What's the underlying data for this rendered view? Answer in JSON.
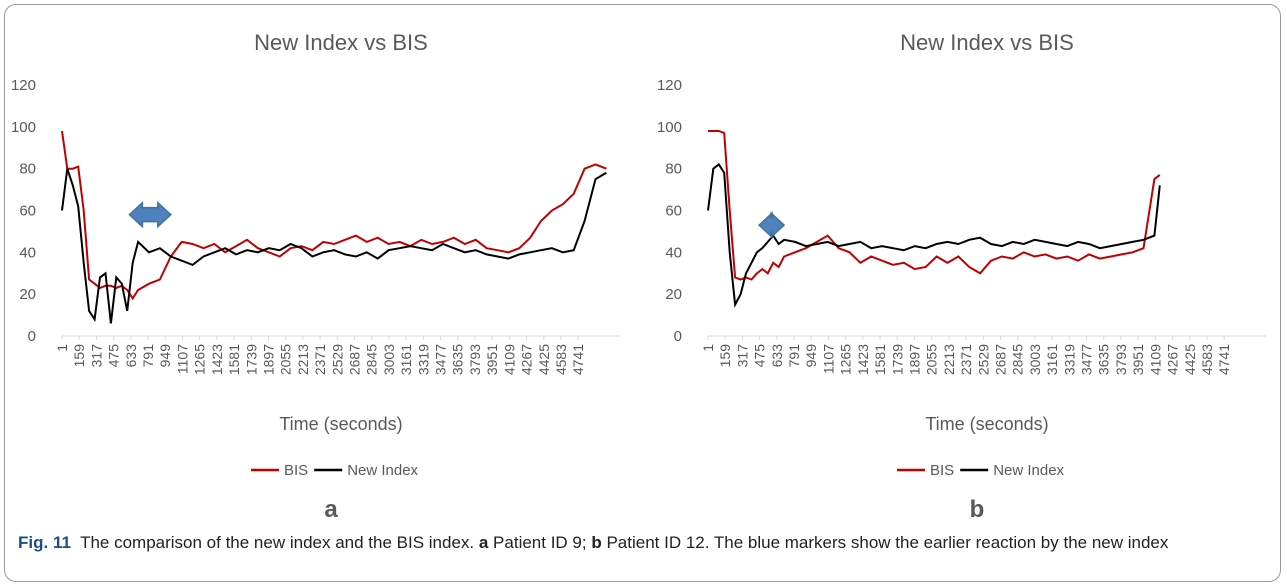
{
  "chart_data": [
    {
      "type": "line",
      "title": "New Index vs BIS",
      "panel": "a",
      "x_label": "Time (seconds)",
      "x": [
        1,
        50,
        100,
        150,
        200,
        250,
        300,
        350,
        400,
        450,
        500,
        550,
        600,
        650,
        700,
        800,
        900,
        1000,
        1100,
        1200,
        1300,
        1400,
        1500,
        1600,
        1700,
        1800,
        1900,
        2000,
        2100,
        2200,
        2300,
        2400,
        2500,
        2600,
        2700,
        2800,
        2900,
        3000,
        3100,
        3200,
        3300,
        3400,
        3500,
        3600,
        3700,
        3800,
        3900,
        4000,
        4100,
        4200,
        4300,
        4400,
        4500,
        4600,
        4700,
        4800,
        4900,
        5000
      ],
      "series": [
        {
          "name": "BIS",
          "color": "#c00000",
          "values": [
            98,
            80,
            80,
            81,
            60,
            27,
            25,
            23,
            24,
            24,
            23,
            24,
            22,
            18,
            22,
            25,
            27,
            38,
            45,
            44,
            42,
            44,
            40,
            43,
            46,
            42,
            40,
            38,
            42,
            43,
            41,
            45,
            44,
            46,
            48,
            45,
            47,
            44,
            45,
            43,
            46,
            44,
            45,
            47,
            44,
            46,
            42,
            41,
            40,
            42,
            47,
            55,
            60,
            63,
            68,
            80,
            82,
            80
          ]
        },
        {
          "name": "New Index",
          "color": "#000000",
          "values": [
            60,
            80,
            72,
            62,
            35,
            12,
            8,
            28,
            30,
            6,
            28,
            25,
            12,
            35,
            45,
            40,
            42,
            38,
            36,
            34,
            38,
            40,
            42,
            39,
            41,
            40,
            42,
            41,
            44,
            42,
            38,
            40,
            41,
            39,
            38,
            40,
            37,
            41,
            42,
            43,
            42,
            41,
            44,
            42,
            40,
            41,
            39,
            38,
            37,
            39,
            40,
            41,
            42,
            40,
            41,
            55,
            75,
            78
          ]
        }
      ],
      "marker": {
        "x": [
          620,
          1000
        ],
        "y": 58,
        "color": "#4f81bd"
      },
      "xlim": [
        1,
        5125
      ],
      "ylim": [
        0,
        120
      ],
      "xticks": [
        1,
        159,
        317,
        475,
        633,
        791,
        949,
        1107,
        1265,
        1423,
        1581,
        1739,
        1897,
        2055,
        2213,
        2371,
        2529,
        2687,
        2845,
        3003,
        3161,
        3319,
        3477,
        3635,
        3793,
        3951,
        4109,
        4267,
        4425,
        4583,
        4741
      ],
      "yticks": [
        0,
        20,
        40,
        60,
        80,
        100,
        120
      ],
      "legend": "bottom"
    },
    {
      "type": "line",
      "title": "New Index vs BIS",
      "panel": "b",
      "x_label": "Time (seconds)",
      "x": [
        1,
        50,
        100,
        150,
        200,
        250,
        300,
        350,
        400,
        450,
        500,
        550,
        600,
        650,
        700,
        800,
        900,
        1000,
        1100,
        1200,
        1300,
        1400,
        1500,
        1600,
        1700,
        1800,
        1900,
        2000,
        2100,
        2200,
        2300,
        2400,
        2500,
        2600,
        2700,
        2800,
        2900,
        3000,
        3100,
        3200,
        3300,
        3400,
        3500,
        3600,
        3700,
        3800,
        3900,
        4000,
        4100,
        4150
      ],
      "series": [
        {
          "name": "BIS",
          "color": "#c00000",
          "values": [
            98,
            98,
            98,
            97,
            60,
            28,
            27,
            28,
            27,
            30,
            32,
            30,
            35,
            33,
            38,
            40,
            42,
            45,
            48,
            42,
            40,
            35,
            38,
            36,
            34,
            35,
            32,
            33,
            38,
            35,
            38,
            33,
            30,
            36,
            38,
            37,
            40,
            38,
            39,
            37,
            38,
            36,
            39,
            37,
            38,
            39,
            40,
            42,
            75,
            77
          ]
        },
        {
          "name": "New Index",
          "color": "#000000",
          "values": [
            60,
            80,
            82,
            78,
            40,
            15,
            20,
            30,
            35,
            40,
            42,
            45,
            48,
            44,
            46,
            45,
            43,
            44,
            45,
            43,
            44,
            45,
            42,
            43,
            42,
            41,
            43,
            42,
            44,
            45,
            44,
            46,
            47,
            44,
            43,
            45,
            44,
            46,
            45,
            44,
            43,
            45,
            44,
            42,
            43,
            44,
            45,
            46,
            48,
            72
          ]
        }
      ],
      "marker": {
        "x": [
          470,
          700
        ],
        "y": 53,
        "color": "#4f81bd"
      },
      "xlim": [
        1,
        5125
      ],
      "ylim": [
        0,
        120
      ],
      "xticks": [
        1,
        159,
        317,
        475,
        633,
        791,
        949,
        1107,
        1265,
        1423,
        1581,
        1739,
        1897,
        2055,
        2213,
        2371,
        2529,
        2687,
        2845,
        3003,
        3161,
        3319,
        3477,
        3635,
        3793,
        3951,
        4109,
        4267,
        4425,
        4583,
        4741
      ],
      "yticks": [
        0,
        20,
        40,
        60,
        80,
        100,
        120
      ],
      "legend": "bottom"
    }
  ],
  "caption": {
    "label": "Fig. 11",
    "parts": [
      "The comparison of the new index and the BIS index. ",
      "a",
      " Patient ID 9; ",
      "b",
      " Patient ID 12. The blue markers show the earlier reaction by the new index"
    ]
  }
}
